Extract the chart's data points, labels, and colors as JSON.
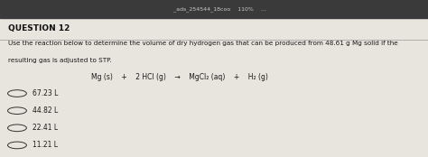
{
  "question_label": "QUESTION 12",
  "body_line1": "Use the reaction below to determine the volume of dry hydrogen gas that can be produced from 48.61 g Mg solid if the",
  "body_line2": "resulting gas is adjusted to STP.",
  "equation": "Mg (s)    +    2 HCl (g)    →    MgCl₂ (aq)    +    H₂ (g)",
  "choices": [
    "67.23 L",
    "44.82 L",
    "22.41 L",
    "11.21 L"
  ],
  "top_bar_color": "#3a3a3a",
  "top_bar_height": 0.115,
  "page_bg_color": "#c8c0b4",
  "content_bg_color": "#e8e4de",
  "text_color": "#1a1a1a",
  "question_label_color": "#111111",
  "line_color": "#999999",
  "circle_color": "#333333",
  "top_bar_text": "      _ads_254544_18coo    110%    ...",
  "top_bar_text_color": "#cccccc"
}
